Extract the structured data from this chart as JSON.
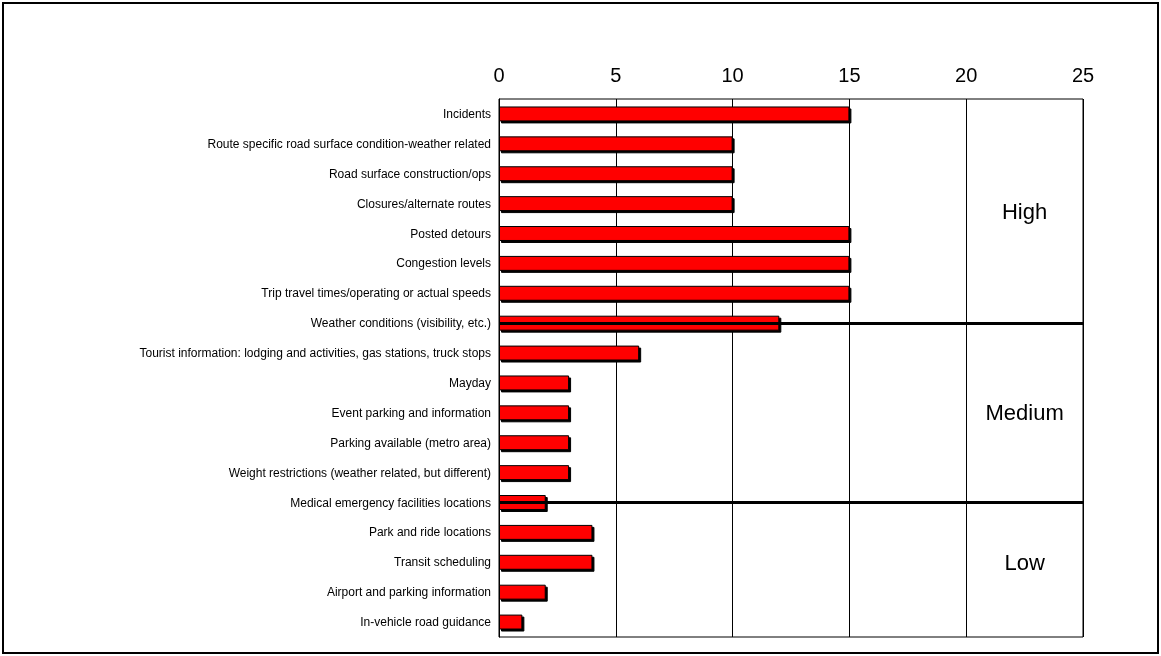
{
  "chart_data": {
    "type": "bar",
    "orientation": "horizontal",
    "categories": [
      "Incidents",
      "Route specific road surface condition-weather related",
      "Road surface construction/ops",
      "Closures/alternate routes",
      "Posted detours",
      "Congestion levels",
      "Trip travel times/operating or actual speeds",
      "Weather conditions (visibility, etc.)",
      "Tourist information: lodging and activities, gas stations, truck stops",
      "Mayday",
      "Event parking and information",
      "Parking available (metro area)",
      "Weight restrictions (weather related, but different)",
      "Medical emergency facilities locations",
      "Park and ride locations",
      "Transit scheduling",
      "Airport and parking information",
      "In-vehicle road guidance"
    ],
    "values": [
      15,
      10,
      10,
      10,
      15,
      15,
      15,
      12,
      6,
      3,
      3,
      3,
      3,
      2,
      4,
      4,
      2,
      1
    ],
    "color": "#ff0000",
    "xlim": [
      0,
      25
    ],
    "xticks": [
      0,
      5,
      10,
      15,
      20,
      25
    ],
    "grid": "x",
    "ref_lines": [
      {
        "axis": "y",
        "value": "Weather conditions (visibility, etc.)",
        "color": "#000000"
      },
      {
        "axis": "y",
        "value": "Medical emergency facilities locations",
        "color": "#000000"
      }
    ],
    "annotations": [
      "High",
      "Medium",
      "Low"
    ]
  }
}
